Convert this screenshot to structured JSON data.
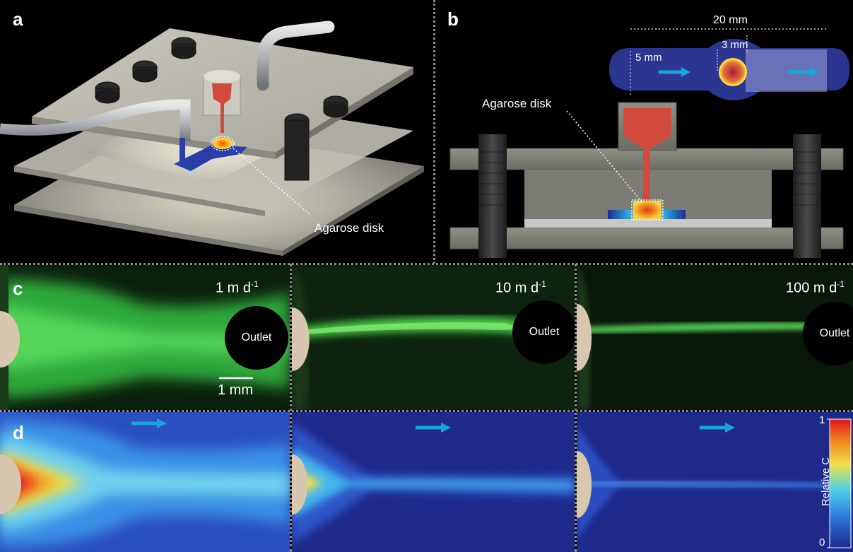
{
  "panels": {
    "a": {
      "label": "a",
      "annotation": "Agarose disk"
    },
    "b": {
      "label": "b",
      "annotation": "Agarose disk",
      "dims": {
        "width": "20 mm",
        "inlet": "5 mm",
        "disk": "3 mm"
      }
    },
    "c": {
      "label": "c",
      "flows": [
        {
          "rate": "1 m d",
          "exp": "-1",
          "outlet": "Outlet"
        },
        {
          "rate": "10 m d",
          "exp": "-1",
          "outlet": "Outlet"
        },
        {
          "rate": "100 m d",
          "exp": "-1",
          "outlet": "Outlet"
        }
      ],
      "scalebar": "1 mm"
    },
    "d": {
      "label": "d",
      "colorbar": {
        "title": "Relative C",
        "max": "1",
        "min": "0"
      }
    }
  },
  "colors": {
    "background": "#000000",
    "divider": "#8a8a8a",
    "channel_blue": "#1f2b8a",
    "flow_arrow": "#1aa3dc",
    "tracer_green": "#3fe04a",
    "disk_beige": "#d8c7ae",
    "concentration_high": "#e0141c",
    "concentration_low": "#1d2a8a"
  },
  "icons": [
    "flow-arrow-icon",
    "screw-icon",
    "tube-icon"
  ]
}
